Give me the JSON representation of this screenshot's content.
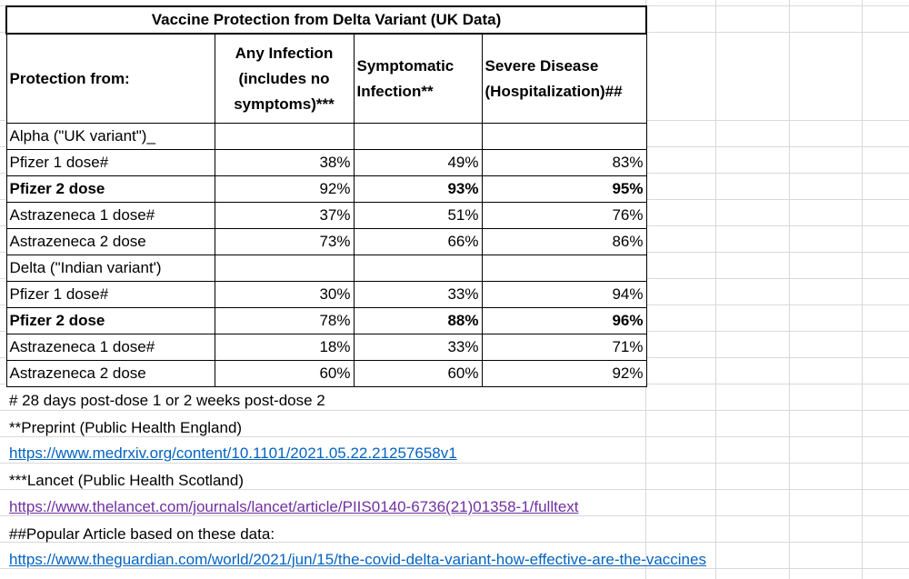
{
  "table": {
    "title": "Vaccine Protection from Delta Variant (UK Data)",
    "headers": {
      "protection_from": "Protection from:",
      "any_infection": "Any Infection (includes no symptoms)***",
      "symptomatic": "Symptomatic Infection**",
      "severe": "Severe Disease (Hospitalization)##"
    },
    "rows": [
      {
        "label": "Alpha (\"UK variant\")_",
        "any": "",
        "sym": "",
        "sev": "",
        "bold": false
      },
      {
        "label": "Pfizer 1 dose#",
        "any": "38%",
        "sym": "49%",
        "sev": "83%",
        "bold": false
      },
      {
        "label": "Pfizer 2 dose",
        "any": "92%",
        "sym": "93%",
        "sev": "95%",
        "bold": true
      },
      {
        "label": "Astrazeneca 1 dose#",
        "any": "37%",
        "sym": "51%",
        "sev": "76%",
        "bold": false
      },
      {
        "label": "Astrazeneca 2 dose",
        "any": "73%",
        "sym": "66%",
        "sev": "86%",
        "bold": false
      },
      {
        "label": "Delta (\"Indian variant')",
        "any": "",
        "sym": "",
        "sev": "",
        "bold": false
      },
      {
        "label": "Pfizer 1 dose#",
        "any": "30%",
        "sym": "33%",
        "sev": "94%",
        "bold": false
      },
      {
        "label": "Pfizer 2 dose",
        "any": "78%",
        "sym": "88%",
        "sev": "96%",
        "bold": true
      },
      {
        "label": "Astrazeneca 1 dose#",
        "any": "18%",
        "sym": "33%",
        "sev": "71%",
        "bold": false
      },
      {
        "label": "Astrazeneca 2 dose",
        "any": "60%",
        "sym": "60%",
        "sev": "92%",
        "bold": false
      }
    ]
  },
  "notes": {
    "note1": "# 28 days post-dose 1 or 2 weeks post-dose 2",
    "note2": "**Preprint (Public Health England)",
    "link1": "https://www.medrxiv.org/content/10.1101/2021.05.22.21257658v1",
    "note3": "***Lancet (Public Health Scotland)",
    "link2": "https://www.thelancet.com/journals/lancet/article/PIIS0140-6736(21)01358-1/fulltext",
    "note4": "##Popular Article based on these data:",
    "link3": "https://www.theguardian.com/world/2021/jun/15/the-covid-delta-variant-how-effective-are-the-vaccines"
  },
  "colors": {
    "link": "#0563c1",
    "visited_link": "#7030a0",
    "gridline": "#d9d9d9"
  }
}
